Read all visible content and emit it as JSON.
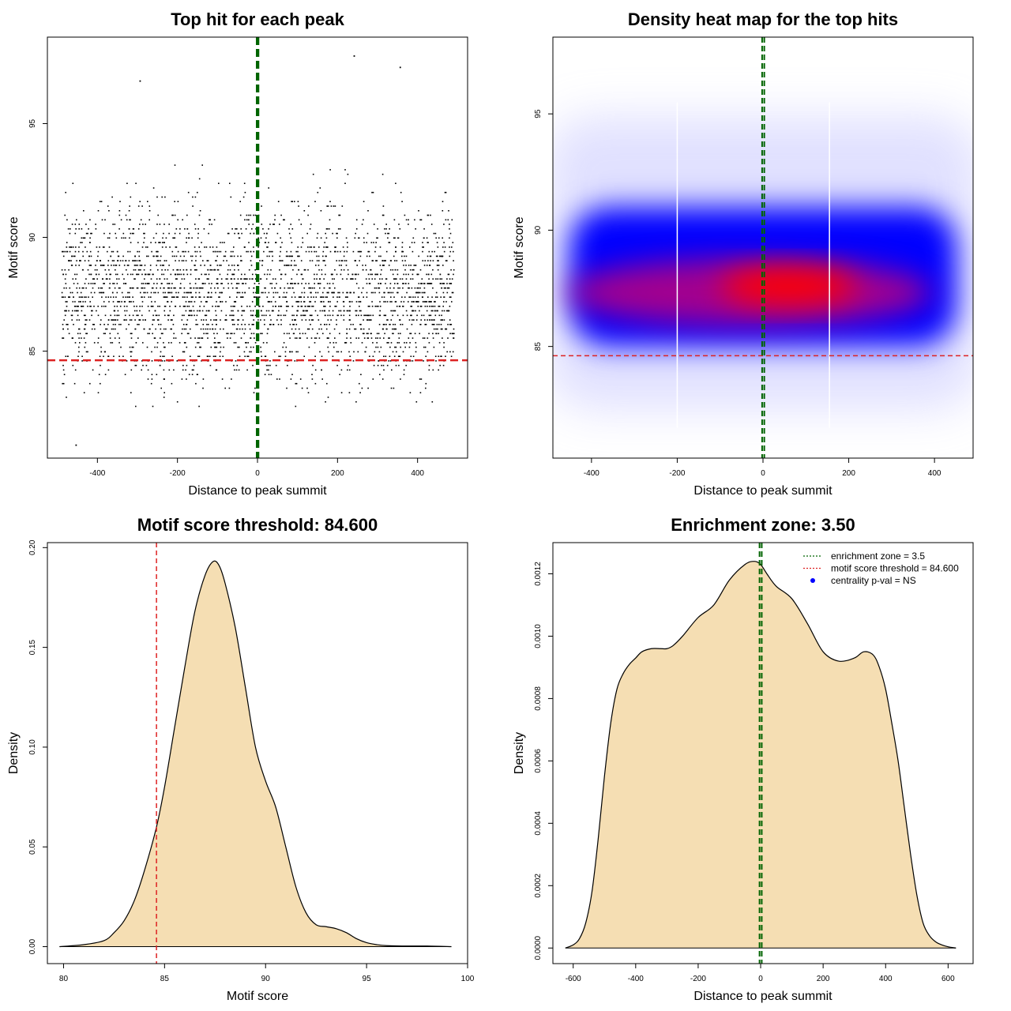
{
  "colors": {
    "threshold_line": "#dd2222",
    "zone_line": "#006400",
    "density_fill": "#f5deb3",
    "heat_high": "#ff0000",
    "heat_mid": "#0000ff",
    "points": "#000000",
    "centrality_marker": "#0000ff"
  },
  "chart_data": [
    {
      "type": "scatter",
      "title": "Top hit for each peak",
      "xlabel": "Distance to peak summit",
      "ylabel": "Motif score",
      "xlim": [
        -525,
        525
      ],
      "ylim": [
        80.3,
        98.8
      ],
      "xticks": [
        "-400",
        "-200",
        "0",
        "200",
        "400"
      ],
      "yticks": [
        "85",
        "90",
        "95"
      ],
      "xtick_values": [
        -400,
        -200,
        0,
        200,
        400
      ],
      "ytick_values": [
        85,
        90,
        95
      ],
      "x_range": [
        -490,
        490
      ],
      "y_center": 87.6,
      "y_spread": 1.9,
      "n_points": 3000,
      "hline": {
        "y": 84.6,
        "color": "#dd2222",
        "style": "dashed"
      },
      "vlines": [
        {
          "x": -1.5,
          "color": "#006400",
          "style": "dashed"
        },
        {
          "x": 2,
          "color": "#006400",
          "style": "dashed"
        }
      ],
      "outliers": [
        [
          355,
          97.5
        ],
        [
          240,
          98
        ],
        [
          -295,
          96.9
        ],
        [
          -455,
          80.9
        ]
      ]
    },
    {
      "type": "heatmap",
      "title": "Density heat map for the top hits",
      "xlabel": "Distance to peak summit",
      "ylabel": "Motif score",
      "xlim": [
        -490,
        490
      ],
      "ylim": [
        80.2,
        98.3
      ],
      "xticks": [
        "-400",
        "-200",
        "0",
        "200",
        "400"
      ],
      "yticks": [
        "85",
        "90",
        "95"
      ],
      "xtick_values": [
        -400,
        -200,
        0,
        200,
        400
      ],
      "ytick_values": [
        85,
        90,
        95
      ],
      "hot_center": [
        60,
        87.6
      ],
      "hot_extent": [
        160,
        0.8
      ],
      "band_center_y": 88,
      "band_half_height": 3,
      "band_x_extent": [
        -470,
        470
      ],
      "hline": {
        "y": 84.6,
        "color": "#dd2222",
        "style": "dashed"
      },
      "vlines": [
        {
          "x": -2,
          "color": "#006400",
          "style": "dashed"
        },
        {
          "x": 3,
          "color": "#006400",
          "style": "dashed"
        }
      ],
      "white_vlines": [
        -200,
        155
      ]
    },
    {
      "type": "area",
      "title": "Motif score threshold: 84.600",
      "xlabel": "Motif score",
      "ylabel": "Density",
      "xlim": [
        79.2,
        100.0
      ],
      "ylim": [
        -0.0085,
        0.2025
      ],
      "xticks": [
        "80",
        "85",
        "90",
        "95",
        "100"
      ],
      "yticks": [
        "0.00",
        "0.05",
        "0.10",
        "0.15",
        "0.20"
      ],
      "xtick_values": [
        80,
        85,
        90,
        95,
        100
      ],
      "ytick_values": [
        0.0,
        0.05,
        0.1,
        0.15,
        0.2
      ],
      "x": [
        79.8,
        81.0,
        82.0,
        82.5,
        83.0,
        83.5,
        84.0,
        84.6,
        85.0,
        85.5,
        86.0,
        86.5,
        87.0,
        87.4,
        87.7,
        88.0,
        88.5,
        89.0,
        89.5,
        90.0,
        90.5,
        91.0,
        91.5,
        92.0,
        92.5,
        93.0,
        93.5,
        94.0,
        94.5,
        95.0,
        95.5,
        96.0,
        97.0,
        98.0,
        99.2
      ],
      "y": [
        0.0,
        0.001,
        0.003,
        0.007,
        0.013,
        0.023,
        0.038,
        0.06,
        0.08,
        0.11,
        0.14,
        0.168,
        0.186,
        0.193,
        0.191,
        0.182,
        0.16,
        0.13,
        0.1,
        0.083,
        0.07,
        0.05,
        0.03,
        0.017,
        0.011,
        0.01,
        0.009,
        0.007,
        0.004,
        0.002,
        0.001,
        0.0005,
        0.0003,
        0.0003,
        0.0
      ],
      "vline": {
        "x": 84.6,
        "color": "#dd2222",
        "style": "dashed"
      }
    },
    {
      "type": "area",
      "title": "Enrichment zone: 3.50",
      "xlabel": "Distance to peak summit",
      "ylabel": "Density",
      "xlim": [
        -665,
        680
      ],
      "ylim": [
        -5e-05,
        0.0013
      ],
      "xticks": [
        "-600",
        "-400",
        "-200",
        "0",
        "200",
        "400",
        "600"
      ],
      "yticks": [
        "0.0000",
        "0.0002",
        "0.0004",
        "0.0006",
        "0.0008",
        "0.0010",
        "0.0012"
      ],
      "xtick_values": [
        -600,
        -400,
        -200,
        0,
        200,
        400,
        600
      ],
      "ytick_values": [
        0.0,
        0.0002,
        0.0004,
        0.0006,
        0.0008,
        0.001,
        0.0012
      ],
      "x": [
        -625,
        -600,
        -580,
        -560,
        -540,
        -520,
        -500,
        -480,
        -460,
        -440,
        -420,
        -400,
        -380,
        -350,
        -320,
        -300,
        -280,
        -250,
        -200,
        -150,
        -100,
        -50,
        -20,
        0,
        20,
        50,
        100,
        150,
        200,
        250,
        300,
        330,
        360,
        380,
        400,
        420,
        440,
        460,
        480,
        500,
        520,
        540,
        560,
        580,
        600,
        625
      ],
      "y": [
        0.0,
        1e-05,
        3e-05,
        8e-05,
        0.00018,
        0.00035,
        0.00055,
        0.00072,
        0.00083,
        0.00088,
        0.00091,
        0.00093,
        0.00095,
        0.00096,
        0.00096,
        0.00096,
        0.00097,
        0.001,
        0.00106,
        0.0011,
        0.00118,
        0.00123,
        0.00124,
        0.00123,
        0.0012,
        0.00116,
        0.00112,
        0.00104,
        0.00095,
        0.00092,
        0.00093,
        0.00095,
        0.00094,
        0.0009,
        0.00083,
        0.00072,
        0.0006,
        0.00045,
        0.0003,
        0.00017,
        8e-05,
        4e-05,
        2e-05,
        1e-05,
        4e-06,
        0.0
      ],
      "vlines": [
        {
          "x": -3.5,
          "color": "#006400",
          "style": "dashed"
        },
        {
          "x": 3.5,
          "color": "#006400",
          "style": "dashed"
        }
      ],
      "legend": {
        "position": "top-right",
        "items": [
          {
            "label": "enrichment zone = 3.5",
            "color": "#006400",
            "kind": "dotted-line"
          },
          {
            "label": "motif score threshold = 84.600",
            "color": "#dd2222",
            "kind": "dotted-line"
          },
          {
            "label": "centrality p-val = NS",
            "color": "#0000ff",
            "kind": "point"
          }
        ]
      }
    }
  ]
}
